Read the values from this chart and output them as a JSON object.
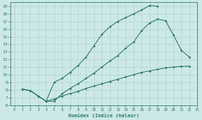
{
  "xlabel": "Humidex (Indice chaleur)",
  "ylabel": "",
  "bg_color": "#cce8e8",
  "line_color": "#2d7a6e",
  "grid_color": "#b0d0d0",
  "xlim": [
    -0.5,
    23
  ],
  "ylim": [
    6,
    19.5
  ],
  "xticks": [
    0,
    1,
    2,
    3,
    4,
    5,
    6,
    7,
    8,
    9,
    10,
    11,
    12,
    13,
    14,
    15,
    16,
    17,
    18,
    19,
    20,
    21,
    22,
    23
  ],
  "yticks": [
    6,
    7,
    8,
    9,
    10,
    11,
    12,
    13,
    14,
    15,
    16,
    17,
    18,
    19
  ],
  "line1_x": [
    1,
    2,
    3,
    4,
    5,
    6,
    7,
    8,
    9,
    10,
    11,
    12,
    13,
    14,
    15,
    16,
    17,
    18
  ],
  "line1_y": [
    8.1,
    7.9,
    7.2,
    6.5,
    9.0,
    9.5,
    10.3,
    11.2,
    12.3,
    13.8,
    15.3,
    16.3,
    17.0,
    17.5,
    18.0,
    18.5,
    19.1,
    19.0
  ],
  "line2_x": [
    1,
    2,
    3,
    4,
    5,
    6,
    7,
    8,
    9,
    10,
    11,
    12,
    13,
    14,
    15,
    16,
    17,
    18,
    19,
    20,
    21,
    22
  ],
  "line2_y": [
    8.1,
    7.9,
    7.2,
    6.5,
    6.5,
    7.5,
    8.2,
    8.8,
    9.5,
    10.2,
    11.0,
    11.8,
    12.5,
    13.5,
    14.3,
    15.8,
    16.8,
    17.3,
    17.1,
    15.2,
    13.2,
    12.3
  ],
  "line3_x": [
    1,
    2,
    3,
    4,
    5,
    6,
    7,
    8,
    9,
    10,
    11,
    12,
    13,
    14,
    15,
    16,
    17,
    18,
    19,
    20,
    21,
    22
  ],
  "line3_y": [
    8.1,
    7.9,
    7.2,
    6.5,
    6.8,
    7.2,
    7.5,
    7.8,
    8.2,
    8.5,
    8.8,
    9.1,
    9.4,
    9.7,
    10.0,
    10.3,
    10.5,
    10.7,
    10.9,
    11.0,
    11.1,
    11.1
  ]
}
